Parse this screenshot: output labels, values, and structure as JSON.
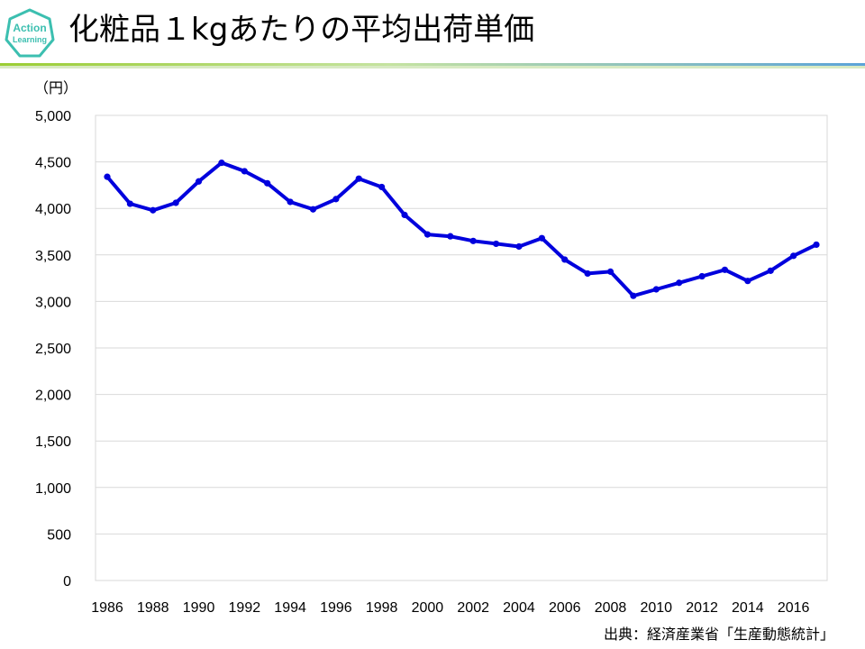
{
  "header": {
    "title": "化粧品１kgあたりの平均出荷単価",
    "logo_text_line1": "Action",
    "logo_text_line2": "Learning"
  },
  "colors": {
    "series": "#0000dd",
    "grid": "#d9d9d9",
    "logo": "#3cbfb0",
    "rule_green": "#9acd32",
    "rule_blue": "#5ba3d9"
  },
  "unit_label": "（円）",
  "source": "出典：経済産業省「生産動態統計」",
  "chart_data": {
    "type": "line",
    "title": "",
    "xlabel": "",
    "ylabel": "（円）",
    "ylim": [
      0,
      5000
    ],
    "y_ticks": [
      0,
      500,
      1000,
      1500,
      2000,
      2500,
      3000,
      3500,
      4000,
      4500,
      5000
    ],
    "y_tick_labels": [
      "0",
      "500",
      "1,000",
      "1,500",
      "2,000",
      "2,500",
      "3,000",
      "3,500",
      "4,000",
      "4,500",
      "5,000"
    ],
    "x_tick_labels": [
      "1986",
      "1988",
      "1990",
      "1992",
      "1994",
      "1996",
      "1998",
      "2000",
      "2002",
      "2004",
      "2006",
      "2008",
      "2010",
      "2012",
      "2014",
      "2016"
    ],
    "grid": true,
    "legend": "none",
    "x": [
      1986,
      1987,
      1988,
      1989,
      1990,
      1991,
      1992,
      1993,
      1994,
      1995,
      1996,
      1997,
      1998,
      1999,
      2000,
      2001,
      2002,
      2003,
      2004,
      2005,
      2006,
      2007,
      2008,
      2009,
      2010,
      2011,
      2012,
      2013,
      2014,
      2015,
      2016,
      2017
    ],
    "series": [
      {
        "values": [
          4340,
          4050,
          3980,
          4060,
          4290,
          4490,
          4400,
          4270,
          4070,
          3990,
          4100,
          4320,
          4230,
          3930,
          3720,
          3700,
          3650,
          3620,
          3590,
          3680,
          3450,
          3300,
          3320,
          3060,
          3130,
          3200,
          3270,
          3340,
          3220,
          3330,
          3490,
          3610
        ]
      }
    ]
  }
}
